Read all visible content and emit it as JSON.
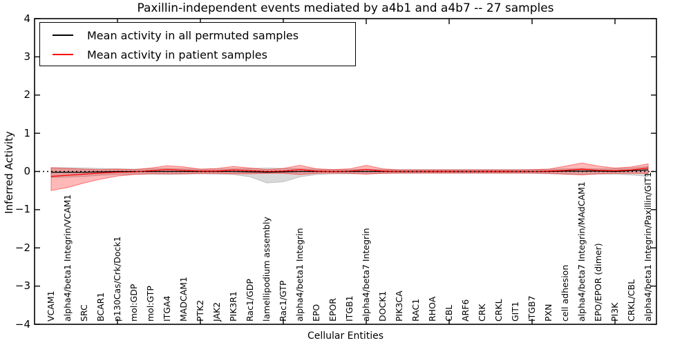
{
  "title": "Paxillin-independent events mediated by a4b1 and a4b7 -- 27 samples",
  "axes": {
    "ylabel": "Inferred Activity",
    "xlabel": "Cellular Entities",
    "y_tick_labels": [
      "4",
      "3",
      "2",
      "1",
      "0",
      "−1",
      "−2",
      "−3",
      "−4"
    ],
    "y_tick_values": [
      4,
      3,
      2,
      1,
      0,
      -1,
      -2,
      -3,
      -4
    ]
  },
  "legend": {
    "items": [
      {
        "label": "Mean activity in all permuted samples",
        "color": "#000000"
      },
      {
        "label": "Mean activity in patient samples",
        "color": "#ff0000"
      }
    ]
  },
  "chart_data": {
    "type": "line",
    "title": "Paxillin-independent events mediated by a4b1 and a4b7 -- 27 samples",
    "xlabel": "Cellular Entities",
    "ylabel": "Inferred Activity",
    "ylim": [
      -4,
      4
    ],
    "grid": false,
    "legend_position": "upper left",
    "x_major_tick_step": 5,
    "zero_line": {
      "y": 0,
      "style": "dotted",
      "color": "#000000"
    },
    "categories": [
      "VCAM1",
      "alpha4/beta1 Integrin/VCAM1",
      "SRC",
      "BCAR1",
      "p130Cas/Crk/Dock1",
      "mol:GDP",
      "mol:GTP",
      "ITGA4",
      "MADCAM1",
      "PTK2",
      "JAK2",
      "PIK3R1",
      "Rac1/GDP",
      "lamellipodium assembly",
      "Rac1/GTP",
      "alpha4/beta1 Integrin",
      "EPO",
      "EPOR",
      "ITGB1",
      "alpha4/beta7 Integrin",
      "DOCK1",
      "PIK3CA",
      "RAC1",
      "RHOA",
      "CBL",
      "ARF6",
      "CRK",
      "CRKL",
      "GIT1",
      "ITGB7",
      "PXN",
      "cell adhesion",
      "alpha4/beta7 Integrin/MAdCAM1",
      "EPO/EPOR (dimer)",
      "PI3K",
      "CRKL/CBL",
      "alpha4/beta1 Integrin/Paxillin/GIT1"
    ],
    "series": [
      {
        "name": "Mean activity in all permuted samples",
        "color": "#000000",
        "band_color": "#aaaaaa",
        "band_opacity": 0.45,
        "values": [
          -0.02,
          -0.02,
          -0.02,
          -0.01,
          0,
          0,
          0,
          0,
          0,
          0,
          0,
          0,
          -0.01,
          -0.02,
          -0.01,
          0,
          0,
          0,
          0,
          0,
          0,
          0,
          0,
          0,
          0,
          0,
          0,
          0,
          0,
          0,
          0,
          0.01,
          0.01,
          0.01,
          0,
          0.02,
          0.04
        ],
        "upper": [
          0.1,
          0.1,
          0.09,
          0.08,
          0.07,
          0.06,
          0.07,
          0.08,
          0.07,
          0.06,
          0.06,
          0.07,
          0.08,
          0.09,
          0.08,
          0.07,
          0.06,
          0.05,
          0.05,
          0.06,
          0.05,
          0.05,
          0.05,
          0.05,
          0.05,
          0.05,
          0.05,
          0.05,
          0.05,
          0.05,
          0.06,
          0.07,
          0.08,
          0.07,
          0.07,
          0.09,
          0.13
        ],
        "lower": [
          -0.16,
          -0.15,
          -0.13,
          -0.1,
          -0.08,
          -0.07,
          -0.07,
          -0.08,
          -0.07,
          -0.06,
          -0.07,
          -0.08,
          -0.14,
          -0.3,
          -0.27,
          -0.14,
          -0.08,
          -0.06,
          -0.06,
          -0.06,
          -0.05,
          -0.05,
          -0.05,
          -0.05,
          -0.05,
          -0.05,
          -0.05,
          -0.05,
          -0.05,
          -0.05,
          -0.06,
          -0.07,
          -0.08,
          -0.07,
          -0.07,
          -0.09,
          -0.13
        ]
      },
      {
        "name": "Mean activity in patient samples",
        "color": "#ff0000",
        "band_color": "#ff0000",
        "band_opacity": 0.28,
        "values": [
          -0.13,
          -0.1,
          -0.07,
          -0.04,
          -0.02,
          -0.01,
          0.02,
          0.05,
          0.03,
          0.01,
          0.01,
          0.04,
          0.02,
          0.0,
          0.01,
          0.05,
          0.01,
          0.0,
          0.01,
          0.05,
          0.01,
          0.0,
          0.0,
          0.0,
          0.0,
          0.0,
          0.0,
          0.0,
          0.0,
          0.0,
          0.01,
          0.03,
          0.06,
          0.03,
          0.02,
          0.04,
          0.09
        ],
        "upper": [
          0.1,
          0.08,
          0.06,
          0.05,
          0.06,
          0.05,
          0.09,
          0.15,
          0.12,
          0.06,
          0.08,
          0.13,
          0.09,
          0.05,
          0.08,
          0.16,
          0.07,
          0.05,
          0.07,
          0.16,
          0.07,
          0.04,
          0.04,
          0.04,
          0.04,
          0.04,
          0.04,
          0.04,
          0.04,
          0.05,
          0.06,
          0.14,
          0.22,
          0.14,
          0.09,
          0.12,
          0.2
        ],
        "lower": [
          -0.5,
          -0.42,
          -0.3,
          -0.2,
          -0.12,
          -0.08,
          -0.06,
          -0.06,
          -0.06,
          -0.05,
          -0.05,
          -0.06,
          -0.06,
          -0.05,
          -0.05,
          -0.08,
          -0.05,
          -0.04,
          -0.05,
          -0.07,
          -0.05,
          -0.04,
          -0.04,
          -0.04,
          -0.04,
          -0.04,
          -0.04,
          -0.04,
          -0.04,
          -0.04,
          -0.05,
          -0.07,
          -0.09,
          -0.06,
          -0.05,
          -0.05,
          -0.05
        ]
      }
    ]
  }
}
